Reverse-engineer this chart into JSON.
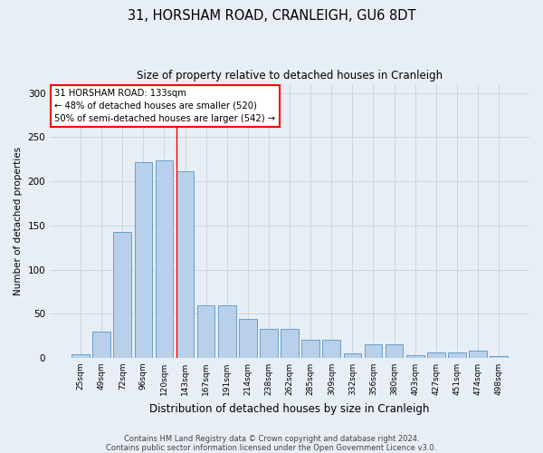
{
  "title1": "31, HORSHAM ROAD, CRANLEIGH, GU6 8DT",
  "title2": "Size of property relative to detached houses in Cranleigh",
  "xlabel": "Distribution of detached houses by size in Cranleigh",
  "ylabel": "Number of detached properties",
  "categories": [
    "25sqm",
    "49sqm",
    "72sqm",
    "96sqm",
    "120sqm",
    "143sqm",
    "167sqm",
    "191sqm",
    "214sqm",
    "238sqm",
    "262sqm",
    "285sqm",
    "309sqm",
    "332sqm",
    "356sqm",
    "380sqm",
    "403sqm",
    "427sqm",
    "451sqm",
    "474sqm",
    "498sqm"
  ],
  "values": [
    4,
    30,
    143,
    222,
    224,
    211,
    59,
    59,
    44,
    33,
    33,
    20,
    20,
    5,
    15,
    15,
    3,
    6,
    6,
    8,
    2
  ],
  "bar_color": "#b8d0ea",
  "bar_edge_color": "#6aa0cc",
  "grid_color": "#cdd5e0",
  "background_color": "#e8eef5",
  "annotation_box_color": "#ffffff",
  "annotation_text": "31 HORSHAM ROAD: 133sqm\n← 48% of detached houses are smaller (520)\n50% of semi-detached houses are larger (542) →",
  "red_line_x": 4.6,
  "footer1": "Contains HM Land Registry data © Crown copyright and database right 2024.",
  "footer2": "Contains public sector information licensed under the Open Government Licence v3.0.",
  "ylim": [
    0,
    310
  ],
  "yticks": [
    0,
    50,
    100,
    150,
    200,
    250,
    300
  ]
}
